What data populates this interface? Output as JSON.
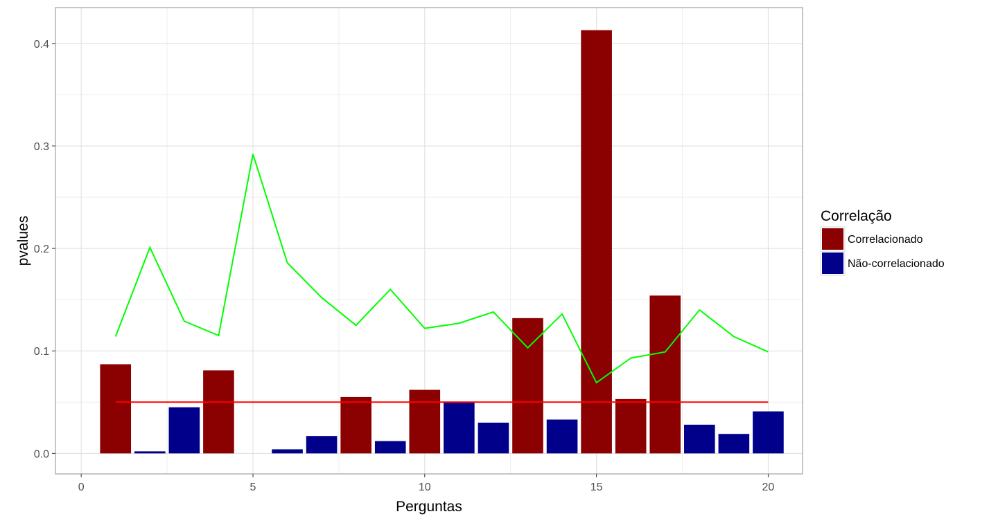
{
  "chart_data": {
    "type": "bar",
    "xlabel": "Perguntas",
    "ylabel": "pvalues",
    "xlim": [
      -0.75,
      21.0
    ],
    "ylim": [
      -0.02,
      0.435
    ],
    "x_ticks": [
      0,
      5,
      10,
      15,
      20
    ],
    "y_ticks": [
      0.0,
      0.1,
      0.2,
      0.3,
      0.4
    ],
    "x_tick_labels": [
      "0",
      "5",
      "10",
      "15",
      "20"
    ],
    "y_tick_labels": [
      "0.0",
      "0.1",
      "0.2",
      "0.3",
      "0.4"
    ],
    "grid": true,
    "legend": {
      "title": "Correlação",
      "placement": "right",
      "entries": [
        {
          "label": "Correlacionado",
          "color": "#8b0000"
        },
        {
          "label": "Não-correlacionado",
          "color": "#00008b"
        }
      ]
    },
    "bars": {
      "x": [
        1,
        2,
        3,
        4,
        5,
        6,
        7,
        8,
        9,
        10,
        11,
        12,
        13,
        14,
        15,
        16,
        17,
        18,
        19,
        20
      ],
      "values": [
        0.087,
        0.002,
        0.045,
        0.081,
        0.0,
        0.004,
        0.017,
        0.055,
        0.012,
        0.062,
        0.05,
        0.03,
        0.132,
        0.033,
        0.413,
        0.053,
        0.154,
        0.028,
        0.019,
        0.041
      ],
      "group": [
        "Correlacionado",
        "Não-correlacionado",
        "Não-correlacionado",
        "Correlacionado",
        "Não-correlacionado",
        "Não-correlacionado",
        "Não-correlacionado",
        "Correlacionado",
        "Não-correlacionado",
        "Correlacionado",
        "Não-correlacionado",
        "Não-correlacionado",
        "Correlacionado",
        "Não-correlacionado",
        "Correlacionado",
        "Correlacionado",
        "Correlacionado",
        "Não-correlacionado",
        "Não-correlacionado",
        "Não-correlacionado"
      ]
    },
    "lines": [
      {
        "color": "#00ff00",
        "x": [
          1,
          2,
          3,
          4,
          5,
          6,
          7,
          8,
          9,
          10,
          11,
          12,
          13,
          14,
          15,
          16,
          17,
          18,
          19,
          20
        ],
        "values": [
          0.114,
          0.201,
          0.129,
          0.115,
          0.292,
          0.186,
          0.152,
          0.125,
          0.16,
          0.122,
          0.127,
          0.138,
          0.103,
          0.136,
          0.069,
          0.093,
          0.099,
          0.14,
          0.114,
          0.099
        ]
      },
      {
        "color": "#ff0000",
        "x": [
          1,
          20
        ],
        "values": [
          0.05,
          0.05
        ]
      }
    ]
  }
}
